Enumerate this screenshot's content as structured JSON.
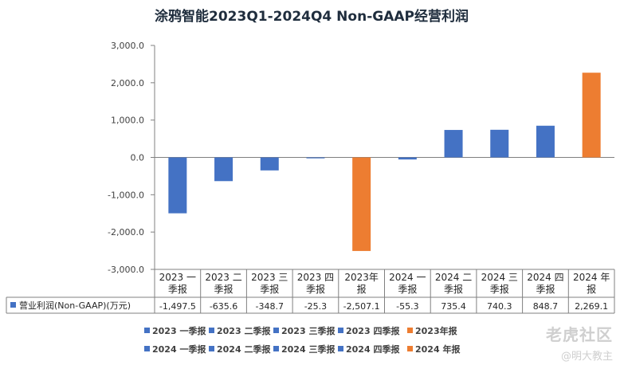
{
  "chart_data": {
    "type": "bar",
    "title": "涂鸦智能2023Q1-2024Q4 Non-GAAP经营利润",
    "categories": [
      [
        "2023 一",
        "季报"
      ],
      [
        "2023 二",
        "季报"
      ],
      [
        "2023 三",
        "季报"
      ],
      [
        "2023 四",
        "季报"
      ],
      [
        "2023年",
        "报"
      ],
      [
        "2024 一",
        "季报"
      ],
      [
        "2024 二",
        "季报"
      ],
      [
        "2024 三",
        "季报"
      ],
      [
        "2024 四",
        "季报"
      ],
      [
        "2024 年",
        "报"
      ]
    ],
    "values": [
      -1497.5,
      -635.6,
      -348.7,
      -25.3,
      -2507.1,
      -55.3,
      735.4,
      740.3,
      848.7,
      2269.1
    ],
    "value_labels": [
      "-1,497.5",
      "-635.6",
      "-348.7",
      "-25.3",
      "-2,507.1",
      "-55.3",
      "735.4",
      "740.3",
      "848.7",
      "2,269.1"
    ],
    "series_name": "营业利润(Non-GAAP)(万元)",
    "point_colors": [
      "#4472c4",
      "#4472c4",
      "#4472c4",
      "#4472c4",
      "#ed7d31",
      "#4472c4",
      "#4472c4",
      "#4472c4",
      "#4472c4",
      "#ed7d31"
    ],
    "ylim": [
      -3000,
      3000
    ],
    "yticks": [
      3000,
      2000,
      1000,
      0,
      -1000,
      -2000,
      -3000
    ],
    "ytick_labels": [
      "3,000.0",
      "2,000.0",
      "1,000.0",
      "0.0",
      "-1,000.0",
      "-2,000.0",
      "-3,000.0"
    ],
    "legend": [
      {
        "label": "2023 一季报",
        "color": "#4472c4"
      },
      {
        "label": "2023 二季报",
        "color": "#4472c4"
      },
      {
        "label": "2023 三季报",
        "color": "#4472c4"
      },
      {
        "label": "2023 四季报",
        "color": "#4472c4"
      },
      {
        "label": "2023年报",
        "color": "#ed7d31"
      },
      {
        "label": "2024 一季报",
        "color": "#4472c4"
      },
      {
        "label": "2024 二季报",
        "color": "#4472c4"
      },
      {
        "label": "2024 三季报",
        "color": "#4472c4"
      },
      {
        "label": "2024 四季报",
        "color": "#4472c4"
      },
      {
        "label": "2024 年报",
        "color": "#ed7d31"
      }
    ]
  },
  "watermark": {
    "line1": "老虎社区",
    "line2": "@明大教主"
  }
}
